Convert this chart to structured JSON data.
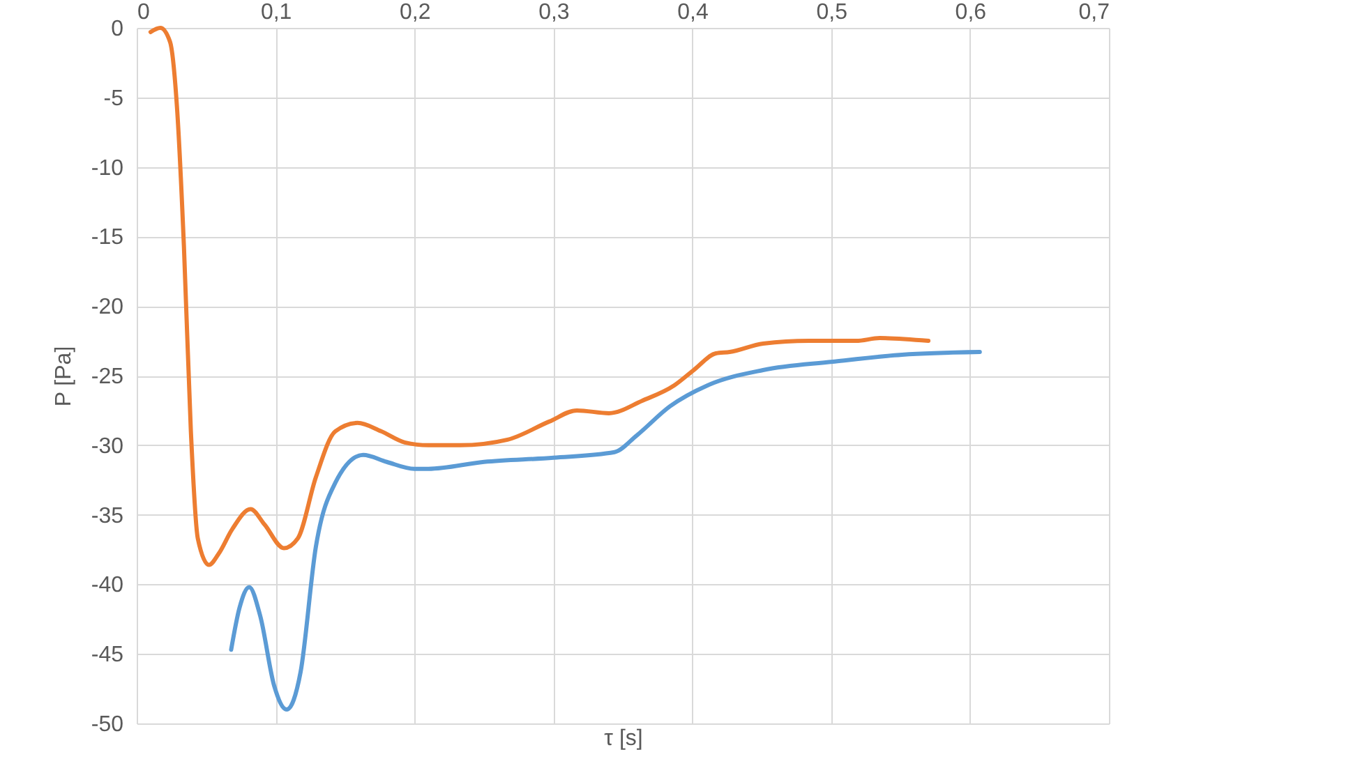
{
  "chart_data": {
    "type": "line",
    "xlabel": "τ [s]",
    "ylabel": "P [Pa]",
    "xlim": [
      0,
      0.7
    ],
    "ylim": [
      -50,
      0
    ],
    "xticks": [
      0,
      {
        "value": 0.1,
        "label": "0,1"
      },
      {
        "value": 0.2,
        "label": "0,2"
      },
      {
        "value": 0.3,
        "label": "0,3"
      },
      {
        "value": 0.4,
        "label": "0,4"
      },
      {
        "value": 0.5,
        "label": "0,5"
      },
      {
        "value": 0.6,
        "label": "0,6"
      },
      {
        "value": 0.7,
        "label": "0,7"
      }
    ],
    "yticks": [
      -50,
      -45,
      -40,
      -35,
      -30,
      -25,
      -20,
      -15,
      -10,
      -5,
      0
    ],
    "grid": true,
    "marker": "none",
    "line_style": "solid",
    "series": [
      {
        "color": "#5b9bd5",
        "x": [
          0.068,
          0.074,
          0.081,
          0.089,
          0.099,
          0.108,
          0.118,
          0.129,
          0.143,
          0.163,
          0.18,
          0.2,
          0.21,
          0.25,
          0.3,
          0.344,
          0.36,
          0.384,
          0.411,
          0.451,
          0.501,
          0.551,
          0.607
        ],
        "values": [
          -44.7,
          -41.7,
          -40.2,
          -42.3,
          -47.3,
          -49,
          -46.3,
          -37.3,
          -32.7,
          -30.7,
          -31.2,
          -31.7,
          -31.7,
          -31.2,
          -30.9,
          -30.5,
          -29.3,
          -27.2,
          -25.7,
          -24.6,
          -24,
          -23.5,
          -23.3
        ]
      },
      {
        "color": "#ed7d31",
        "x": [
          0.01,
          0.017,
          0.024,
          0.029,
          0.034,
          0.039,
          0.044,
          0.052,
          0.059,
          0.069,
          0.082,
          0.092,
          0.106,
          0.116,
          0.129,
          0.143,
          0.159,
          0.176,
          0.193,
          0.21,
          0.233,
          0.267,
          0.297,
          0.317,
          0.34,
          0.364,
          0.387,
          0.401,
          0.417,
          0.427,
          0.451,
          0.484,
          0.518,
          0.535,
          0.57
        ],
        "values": [
          -0.3,
          0,
          -1,
          -5.7,
          -15.7,
          -29,
          -36.7,
          -38.6,
          -37.8,
          -36,
          -34.6,
          -35.7,
          -37.4,
          -36.7,
          -32.3,
          -29,
          -28.4,
          -29,
          -29.8,
          -30,
          -30,
          -29.6,
          -28.3,
          -27.5,
          -27.7,
          -26.8,
          -25.7,
          -24.6,
          -23.4,
          -23.3,
          -22.7,
          -22.5,
          -22.5,
          -22.3,
          -22.5
        ]
      }
    ]
  }
}
